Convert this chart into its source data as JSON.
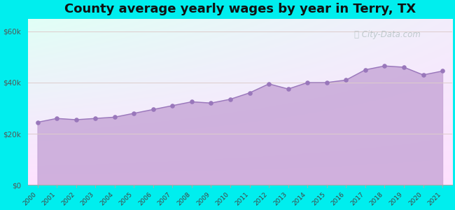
{
  "title": "County average yearly wages by year in Terry, TX",
  "years": [
    2000,
    2001,
    2002,
    2003,
    2004,
    2005,
    2006,
    2007,
    2008,
    2009,
    2010,
    2011,
    2012,
    2013,
    2014,
    2015,
    2016,
    2017,
    2018,
    2019,
    2020,
    2021
  ],
  "values": [
    24500,
    26000,
    25500,
    26000,
    26500,
    28000,
    29500,
    31000,
    32500,
    32000,
    33500,
    36000,
    39500,
    37500,
    40000,
    40000,
    41000,
    45000,
    46500,
    46000,
    43000,
    44500
  ],
  "yticks": [
    0,
    20000,
    40000,
    60000
  ],
  "ylim": [
    0,
    65000
  ],
  "fill_color": "#c8a8d8",
  "fill_alpha": 0.85,
  "line_color": "#9977bb",
  "marker_color": "#9977bb",
  "background_outer": "#00eeee",
  "grid_color": "#ddcccc",
  "title_fontsize": 13,
  "watermark_text": "City-Data.com",
  "watermark_color": "#aabbbb",
  "watermark_alpha": 0.7,
  "bg_top_left": "#d8f5e8",
  "bg_top_right": "#f5f8f8",
  "bg_bottom": "#ffffff"
}
